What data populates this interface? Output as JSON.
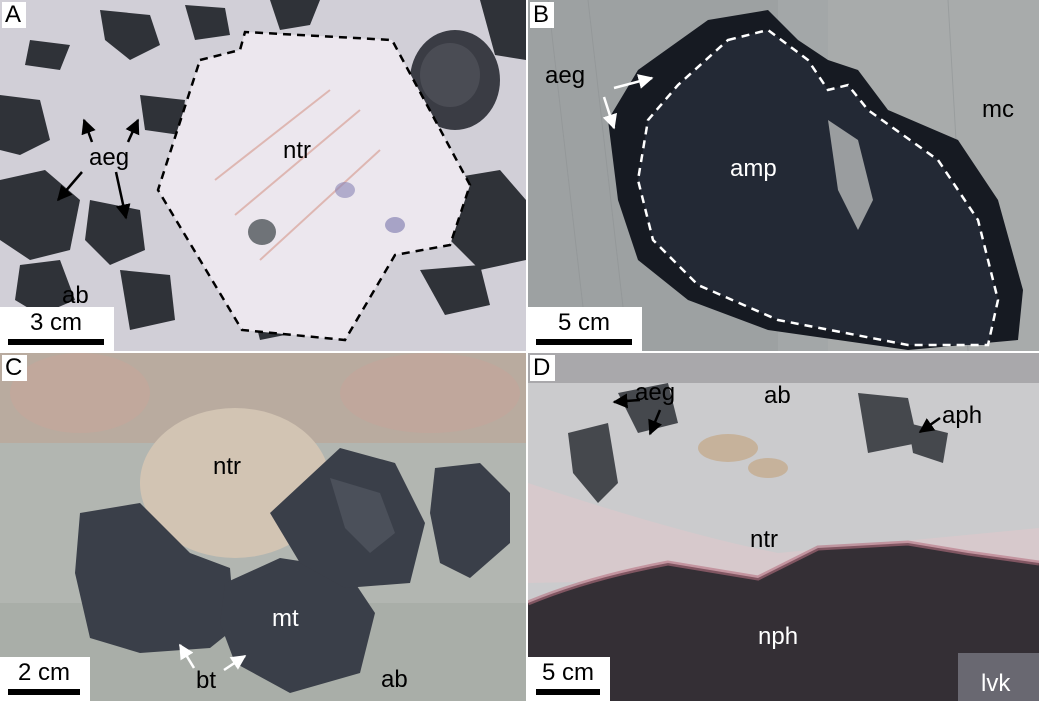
{
  "panels": {
    "a": {
      "letter": "A",
      "labels": {
        "aeg": "aeg",
        "ntr": "ntr",
        "ab": "ab"
      },
      "scale": "3 cm"
    },
    "b": {
      "letter": "B",
      "labels": {
        "aeg": "aeg",
        "amp": "amp",
        "mc": "mc"
      },
      "scale": "5 cm"
    },
    "c": {
      "letter": "C",
      "labels": {
        "ntr": "ntr",
        "mt": "mt",
        "bt": "bt",
        "ab": "ab"
      },
      "scale": "2 cm"
    },
    "d": {
      "letter": "D",
      "labels": {
        "aeg": "aeg",
        "ab": "ab",
        "aph": "aph",
        "ntr": "ntr",
        "nph": "nph",
        "lvk": "lvk"
      },
      "scale": "5 cm"
    }
  },
  "colors": {
    "divider": "#ffffff",
    "background_a": "#d8d6dc",
    "background_b": "#9ea3a5",
    "background_c": "#b3b7b3",
    "background_d": "#c7c7c9",
    "dark_mineral": "#2c3038",
    "ntr_crystal": "#ece6ec",
    "boundary_dash_a": "#000000",
    "boundary_dash_b": "#ffffff"
  }
}
